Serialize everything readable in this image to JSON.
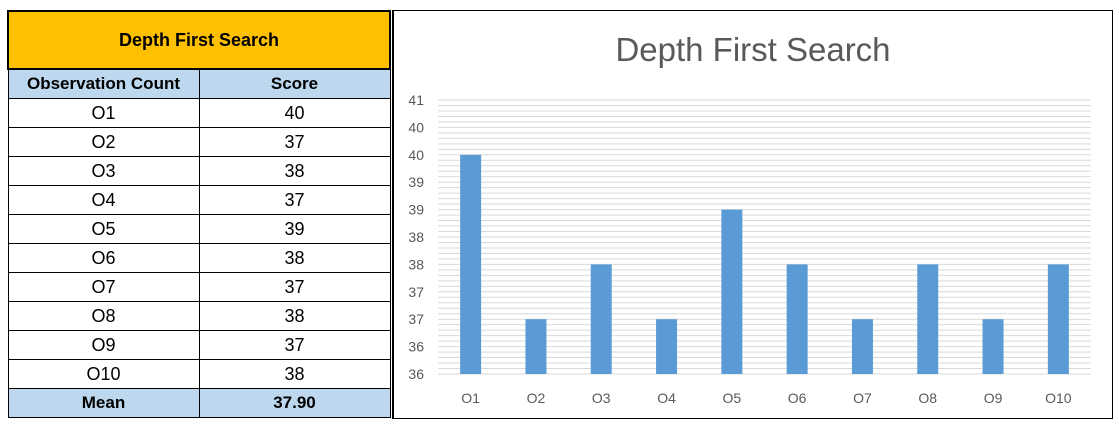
{
  "table": {
    "title": "Depth First Search",
    "col_headers": [
      "Observation Count",
      "Score"
    ],
    "rows": [
      {
        "label": "O1",
        "score": "40"
      },
      {
        "label": "O2",
        "score": "37"
      },
      {
        "label": "O3",
        "score": "38"
      },
      {
        "label": "O4",
        "score": "37"
      },
      {
        "label": "O5",
        "score": "39"
      },
      {
        "label": "O6",
        "score": "38"
      },
      {
        "label": "O7",
        "score": "37"
      },
      {
        "label": "O8",
        "score": "38"
      },
      {
        "label": "O9",
        "score": "37"
      },
      {
        "label": "O10",
        "score": "38"
      }
    ],
    "mean_label": "Mean",
    "mean_value": "37.90"
  },
  "chart_data": {
    "type": "bar",
    "title": "Depth First Search",
    "categories": [
      "O1",
      "O2",
      "O3",
      "O4",
      "O5",
      "O6",
      "O7",
      "O8",
      "O9",
      "O10"
    ],
    "values": [
      40,
      37,
      38,
      37,
      39,
      38,
      37,
      38,
      37,
      38
    ],
    "ylim": [
      36,
      41
    ],
    "ytick_labels": [
      "36",
      "36",
      "37",
      "37",
      "38",
      "38",
      "39",
      "39",
      "40",
      "40",
      "41"
    ],
    "xlabel": "",
    "ylabel": "",
    "grid": true,
    "bar_color": "#5b9bd5",
    "grid_color": "#d9d9d9"
  }
}
